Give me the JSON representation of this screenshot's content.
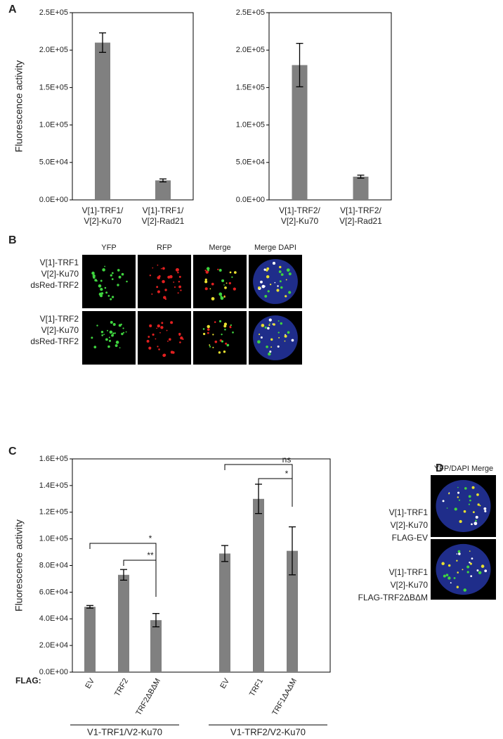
{
  "panels": {
    "a": "A",
    "b": "B",
    "c": "C",
    "d": "D"
  },
  "chart_data": [
    {
      "type": "bar",
      "y_label": "Fluorescence activity",
      "color": "#808080",
      "categories": [
        [
          "V[1]-TRF1/",
          "V[2]-Ku70"
        ],
        [
          "V[1]-TRF1/",
          "V[2]-Rad21"
        ]
      ],
      "values": [
        210000,
        26000
      ],
      "errors": [
        13000,
        2000
      ],
      "ylim": [
        0,
        250000
      ],
      "yticks": [
        {
          "value": 0,
          "label": "0.0E+00"
        },
        {
          "value": 50000,
          "label": "5.0E+04"
        },
        {
          "value": 100000,
          "label": "1.0E+05"
        },
        {
          "value": 150000,
          "label": "1.5E+05"
        },
        {
          "value": 200000,
          "label": "2.0E+05"
        },
        {
          "value": 250000,
          "label": "2.5E+05"
        }
      ]
    },
    {
      "type": "bar",
      "color": "#808080",
      "categories": [
        [
          "V[1]-TRF2/",
          "V[2]-Ku70"
        ],
        [
          "V[1]-TRF2/",
          "V[2]-Rad21"
        ]
      ],
      "values": [
        180000,
        31000
      ],
      "errors": [
        29000,
        2000
      ],
      "ylim": [
        0,
        250000
      ],
      "yticks": [
        {
          "value": 0,
          "label": "0.0E+00"
        },
        {
          "value": 50000,
          "label": "5.0E+04"
        },
        {
          "value": 100000,
          "label": "1.0E+05"
        },
        {
          "value": 150000,
          "label": "1.5E+05"
        },
        {
          "value": 200000,
          "label": "2.0E+05"
        },
        {
          "value": 250000,
          "label": "2.5E+05"
        }
      ]
    },
    {
      "type": "grouped_bar",
      "y_label": "Fluorescence activity",
      "x_prefix": "FLAG:",
      "color": "#808080",
      "groups": [
        {
          "name": "V1-TRF1/V2-Ku70",
          "categories": [
            "EV",
            "TRF2",
            "TRF2ΔBΔM"
          ],
          "values": [
            49000,
            73000,
            39000
          ],
          "errors": [
            1000,
            4000,
            5000
          ]
        },
        {
          "name": "V1-TRF2/V2-Ku70",
          "categories": [
            "EV",
            "TRF1",
            "TRF1ΔAΔM"
          ],
          "values": [
            89000,
            130000,
            91000
          ],
          "errors": [
            6000,
            11000,
            18000
          ]
        }
      ],
      "annotations": [
        {
          "text": "*",
          "group": 0,
          "from": 0,
          "to": 2
        },
        {
          "text": "**",
          "group": 0,
          "from": 1,
          "to": 2
        },
        {
          "text": "ns",
          "group": 1,
          "from": 0,
          "to": 2
        },
        {
          "text": "*",
          "group": 1,
          "from": 1,
          "to": 2
        }
      ],
      "ylim": [
        0,
        160000
      ],
      "yticks": [
        {
          "value": 0,
          "label": "0.0E+00"
        },
        {
          "value": 20000,
          "label": "2.0E+04"
        },
        {
          "value": 40000,
          "label": "4.0E+04"
        },
        {
          "value": 60000,
          "label": "6.0E+04"
        },
        {
          "value": 80000,
          "label": "8.0E+04"
        },
        {
          "value": 100000,
          "label": "1.0E+05"
        },
        {
          "value": 120000,
          "label": "1.2E+05"
        },
        {
          "value": 140000,
          "label": "1.4E+05"
        },
        {
          "value": 160000,
          "label": "1.6E+05"
        }
      ]
    }
  ],
  "panel_b": {
    "columns": [
      "YFP",
      "RFP",
      "Merge",
      "Merge DAPI"
    ],
    "rows": [
      [
        "V[1]-TRF1",
        "V[2]-Ku70",
        "dsRed-TRF2"
      ],
      [
        "V[1]-TRF2",
        "V[2]-Ku70",
        "dsRed-TRF2"
      ]
    ]
  },
  "panel_d": {
    "header": "YFP/DAPI Merge",
    "rows": [
      [
        "V[1]-TRF1",
        "V[2]-Ku70",
        "FLAG-EV"
      ],
      [
        "V[1]-TRF1",
        "V[2]-Ku70",
        "FLAG-TRF2ΔBΔM"
      ]
    ]
  }
}
